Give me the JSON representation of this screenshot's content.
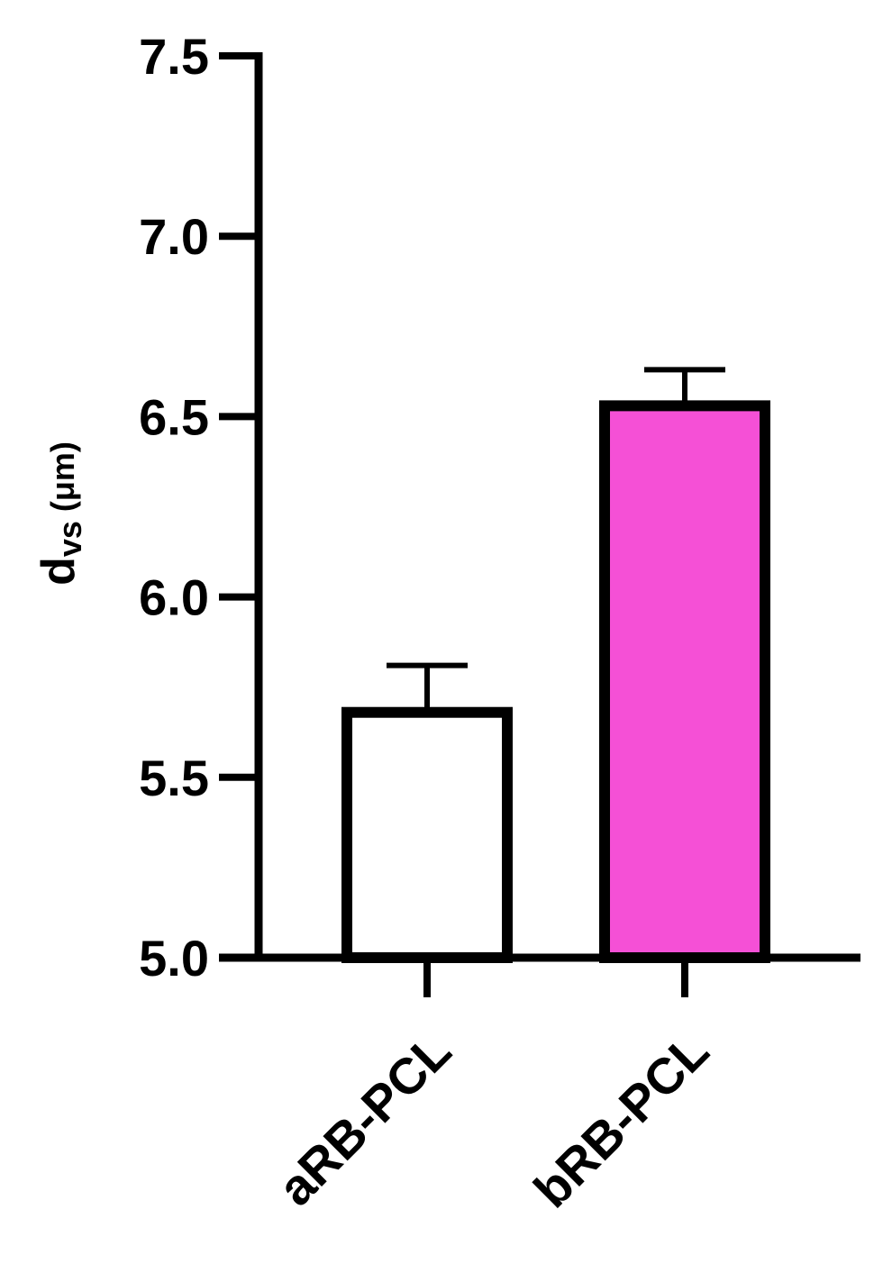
{
  "chart_data": {
    "type": "bar",
    "y_label": {
      "text": "d",
      "subscript": "vs",
      "unit": "(μm)"
    },
    "categories": [
      "aRB-PCL",
      "bRB-PCL"
    ],
    "values": [
      5.68,
      6.53
    ],
    "errors": [
      0.13,
      0.1
    ],
    "colors": [
      "#ffffff",
      "#f550d6"
    ],
    "ylim": [
      5,
      7.5
    ],
    "yticks": [
      {
        "value": 5,
        "label": "5.0"
      },
      5.5,
      {
        "value": 6,
        "label": "6.0"
      },
      6.5,
      {
        "value": 7,
        "label": "7.0"
      },
      7.5
    ]
  }
}
